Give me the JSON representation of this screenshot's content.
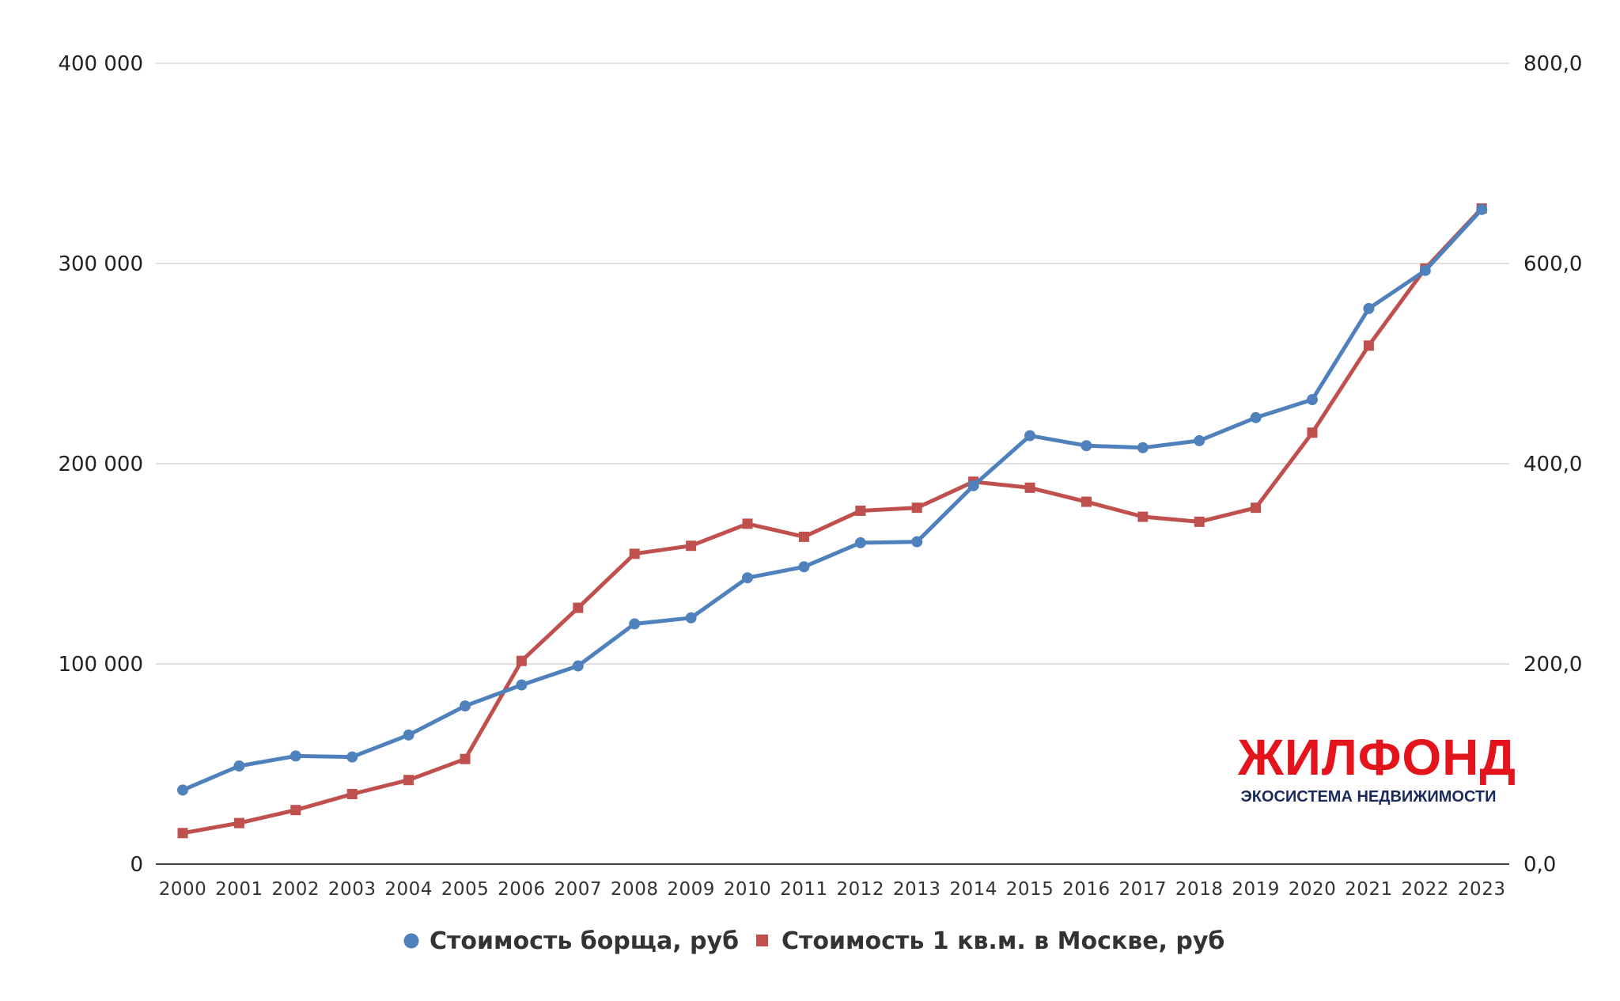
{
  "chart_data": {
    "type": "line",
    "categories": [
      "2000",
      "2001",
      "2002",
      "2003",
      "2004",
      "2005",
      "2006",
      "2007",
      "2008",
      "2009",
      "2010",
      "2011",
      "2012",
      "2013",
      "2014",
      "2015",
      "2016",
      "2017",
      "2018",
      "2019",
      "2020",
      "2021",
      "2022",
      "2023"
    ],
    "series": [
      {
        "name": "Стоимость борща, руб",
        "axis": "right",
        "marker": "circle",
        "color": "#4f81bd",
        "values": [
          74,
          98,
          108,
          107,
          129,
          158,
          179,
          198,
          240,
          246,
          286,
          297,
          321,
          322,
          378,
          428,
          418,
          416,
          423,
          446,
          464,
          555,
          593,
          654
        ]
      },
      {
        "name": "Стоимость 1 кв.м. в Москве, руб",
        "axis": "left",
        "marker": "square",
        "color": "#c0504d",
        "values": [
          15500,
          20500,
          27000,
          35000,
          42000,
          52500,
          101500,
          128000,
          155000,
          159000,
          170000,
          163500,
          176500,
          178000,
          191000,
          188000,
          181000,
          173500,
          171000,
          178000,
          215500,
          259000,
          297500,
          327500
        ]
      }
    ],
    "yaxis_left": {
      "min": 0,
      "max": 400000,
      "ticks": [
        0,
        100000,
        200000,
        300000,
        400000
      ],
      "tick_labels": [
        "0",
        "100 000",
        "200 000",
        "300 000",
        "400 000"
      ]
    },
    "yaxis_right": {
      "min": 0,
      "max": 800,
      "ticks": [
        0,
        200,
        400,
        600,
        800
      ],
      "tick_labels": [
        "0,0",
        "200,0",
        "400,0",
        "600,0",
        "800,0"
      ]
    },
    "grid": true,
    "legend_position": "bottom",
    "title": "",
    "xlabel": "",
    "ylabel": ""
  },
  "brand": {
    "name": "ЖИЛФОНД",
    "tagline": "ЭКОСИСТЕМА НЕДВИЖИМОСТИ"
  }
}
